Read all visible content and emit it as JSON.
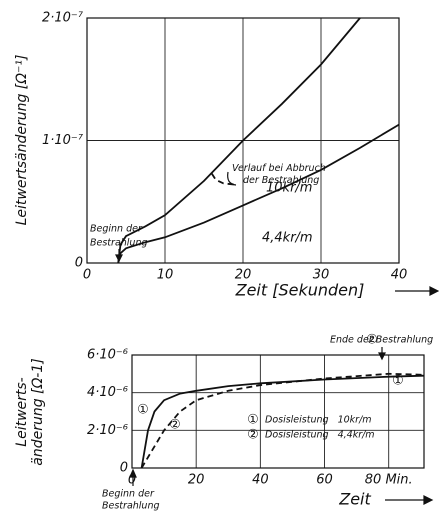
{
  "chart_data": [
    {
      "type": "line",
      "ylabel": "Leitwertsänderung [Ω⁻¹]",
      "xlabel": "Zeit [Sekunden]",
      "xlim": [
        0,
        40
      ],
      "xticks": [
        0,
        10,
        20,
        30,
        40
      ],
      "ylim": [
        0,
        2e-07
      ],
      "yticks": [
        0,
        {
          "value": 1e-07,
          "label": "1·10⁻⁷"
        },
        {
          "value": 2e-07,
          "label": "2·10⁻⁷"
        }
      ],
      "grid": true,
      "series": [
        {
          "name": "10kr/m",
          "color": "#111111",
          "dash": false,
          "x": [
            4,
            4.3,
            5,
            7.5,
            10,
            15,
            20,
            25,
            30,
            35
          ],
          "values": [
            0,
            1.5e-08,
            2.2e-08,
            3e-08,
            3.9e-08,
            6.7e-08,
            1e-07,
            1.3e-07,
            1.62e-07,
            2e-07
          ]
        },
        {
          "name": "4,4kr/m",
          "color": "#111111",
          "dash": false,
          "x": [
            4,
            4.3,
            5,
            7.5,
            10,
            15,
            20,
            25,
            30,
            35,
            40
          ],
          "values": [
            0,
            8e-09,
            1.2e-08,
            1.7e-08,
            2.1e-08,
            3.3e-08,
            4.7e-08,
            6.1e-08,
            7.6e-08,
            9.4e-08,
            1.13e-07
          ]
        },
        {
          "name": "Verlauf bei Abbruch der Bestrahlung",
          "color": "#111111",
          "dash": true,
          "x": [
            16,
            16.5,
            17.5,
            19
          ],
          "values": [
            7.3e-08,
            6.8e-08,
            6.5e-08,
            6.4e-08
          ]
        }
      ],
      "annotations": [
        "Beginn der",
        "Bestrahlung"
      ]
    },
    {
      "type": "line",
      "ylabel": [
        "Leitwerts-",
        "änderung [Ω-1]"
      ],
      "xlabel": "Zeit",
      "xlim": [
        0,
        91
      ],
      "xticks": [
        0,
        20,
        40,
        60,
        {
          "value": 80,
          "label": "80 Min."
        }
      ],
      "ylim": [
        0,
        6e-06
      ],
      "yticks": [
        0,
        {
          "value": 2e-06,
          "label": "2·10⁻⁶"
        },
        {
          "value": 4e-06,
          "label": "4·10⁻⁶"
        },
        {
          "value": 6e-06,
          "label": "6·10⁻⁶"
        }
      ],
      "grid": true,
      "series": [
        {
          "name": "Dosisleistung   10kr/m",
          "marker": "①",
          "color": "#111111",
          "dash": false,
          "x": [
            3,
            5,
            7,
            10,
            15,
            20,
            30,
            40,
            60,
            80,
            91
          ],
          "values": [
            0,
            2e-06,
            3e-06,
            3.6e-06,
            3.95e-06,
            4.1e-06,
            4.35e-06,
            4.5e-06,
            4.7e-06,
            4.85e-06,
            4.9e-06
          ]
        },
        {
          "name": "Dosisleistung   4,4kr/m",
          "marker": "②",
          "color": "#111111",
          "dash": true,
          "x": [
            3,
            10,
            15,
            20,
            30,
            40,
            60,
            80,
            91
          ],
          "values": [
            0,
            2e-06,
            3e-06,
            3.6e-06,
            4.1e-06,
            4.4e-06,
            4.75e-06,
            5e-06,
            4.95e-06
          ]
        }
      ],
      "annotations": [
        "Ende der Bestrahlung",
        "Beginn der",
        "Bestrahlung"
      ]
    }
  ]
}
